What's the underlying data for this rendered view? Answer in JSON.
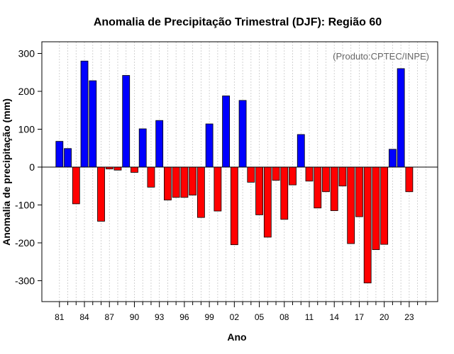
{
  "chart_data": {
    "type": "bar",
    "title": "Anomalia de Precipitação Trimestral (DJF): Região 60",
    "xlabel": "Ano",
    "ylabel": "Anomalia de precipitação (mm)",
    "watermark": "(Produto:CPTEC/INPE)",
    "ylim": [
      -355,
      325
    ],
    "yticks": [
      -300,
      -200,
      -100,
      0,
      100,
      200,
      300
    ],
    "ytick_labels": [
      "-300",
      "-200",
      "-100",
      "0",
      "100",
      "200",
      "300"
    ],
    "xtick_labels": [
      "81",
      "84",
      "87",
      "90",
      "93",
      "96",
      "99",
      "02",
      "05",
      "08",
      "11",
      "14",
      "17",
      "20",
      "23"
    ],
    "grid": true,
    "positive_color": "#0000ff",
    "negative_color": "#ff0000",
    "categories": [
      "1981",
      "1982",
      "1983",
      "1984",
      "1985",
      "1986",
      "1987",
      "1988",
      "1989",
      "1990",
      "1991",
      "1992",
      "1993",
      "1994",
      "1995",
      "1996",
      "1997",
      "1998",
      "1999",
      "2000",
      "2001",
      "2002",
      "2003",
      "2004",
      "2005",
      "2006",
      "2007",
      "2008",
      "2009",
      "2010",
      "2011",
      "2012",
      "2013",
      "2014",
      "2015",
      "2016",
      "2017",
      "2018",
      "2019",
      "2020",
      "2021",
      "2022",
      "2023"
    ],
    "values": [
      68,
      49,
      -97,
      280,
      228,
      -143,
      -5,
      -8,
      242,
      -14,
      101,
      -53,
      123,
      -87,
      -80,
      -80,
      -74,
      -133,
      114,
      -116,
      188,
      -205,
      176,
      -40,
      -126,
      -185,
      -35,
      -138,
      -47,
      86,
      -37,
      -108,
      -65,
      -115,
      -50,
      -202,
      -131,
      -306,
      -218,
      -204,
      47,
      260,
      -65
    ]
  }
}
